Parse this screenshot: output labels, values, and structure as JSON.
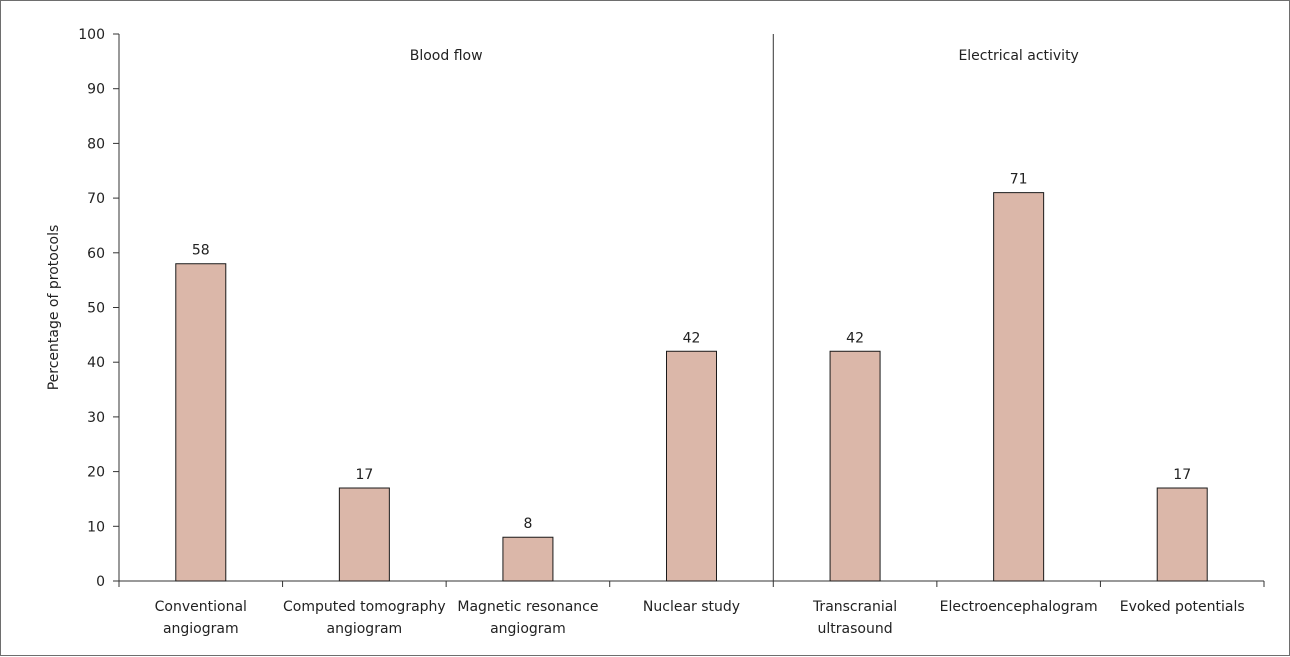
{
  "chart_data": {
    "type": "bar",
    "categories": [
      [
        "Conventional",
        "angiogram"
      ],
      [
        "Computed tomography",
        "angiogram"
      ],
      [
        "Magnetic resonance",
        "angiogram"
      ],
      [
        "Nuclear study"
      ],
      [
        "Transcranial",
        "ultrasound"
      ],
      [
        "Electroencephalogram"
      ],
      [
        "Evoked potentials"
      ]
    ],
    "values": [
      58,
      17,
      8,
      42,
      42,
      71,
      17
    ],
    "ylabel": "Percentage of protocols",
    "ylim": [
      0,
      100
    ],
    "yticks": [
      0,
      10,
      20,
      30,
      40,
      50,
      60,
      70,
      80,
      90,
      100
    ],
    "groups": [
      {
        "label": "Blood flow",
        "from": 0,
        "to": 3
      },
      {
        "label": "Electrical activity",
        "from": 4,
        "to": 6
      }
    ],
    "grid": false,
    "colors": {
      "bar": "#dbb7a9",
      "edge": "#1a1a1a",
      "axis": "#333333"
    }
  }
}
